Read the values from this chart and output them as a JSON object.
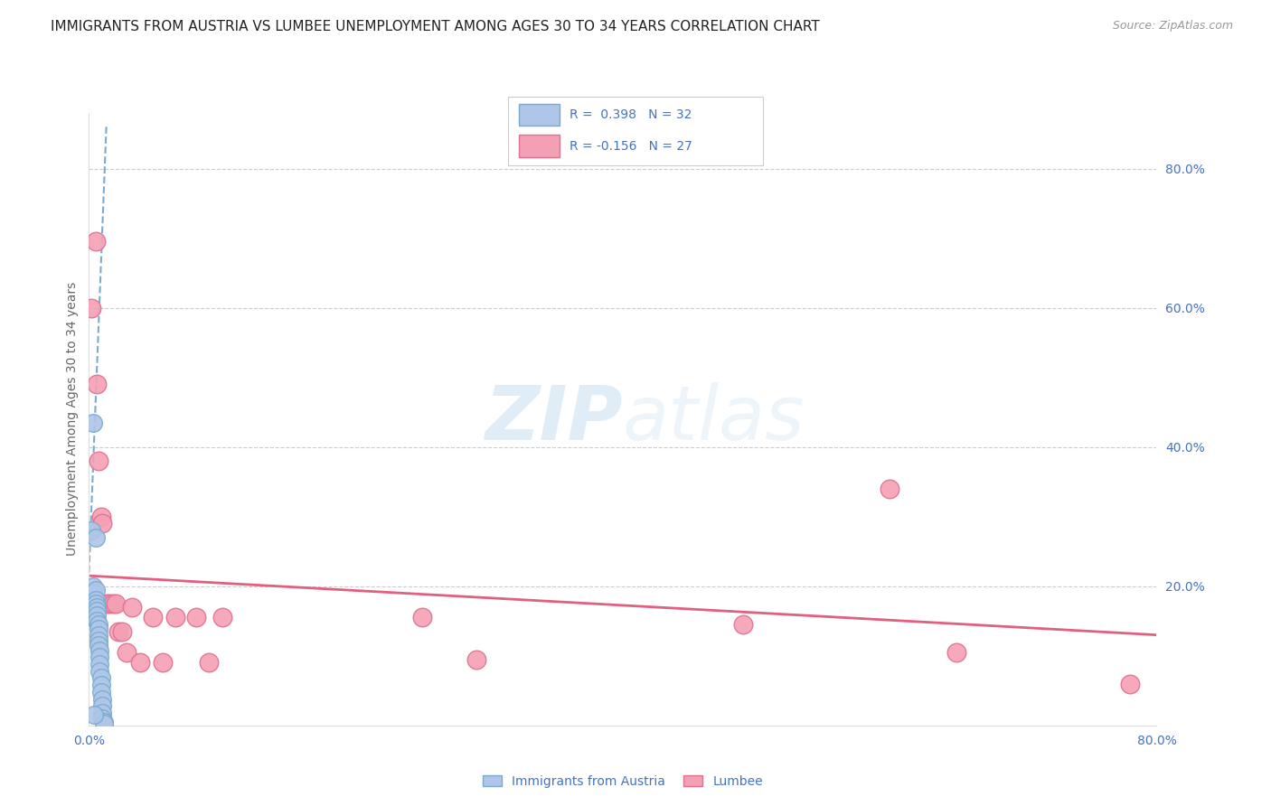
{
  "title": "IMMIGRANTS FROM AUSTRIA VS LUMBEE UNEMPLOYMENT AMONG AGES 30 TO 34 YEARS CORRELATION CHART",
  "source": "Source: ZipAtlas.com",
  "ylabel": "Unemployment Among Ages 30 to 34 years",
  "right_ytick_labels": [
    "80.0%",
    "60.0%",
    "40.0%",
    "20.0%"
  ],
  "right_ytick_vals": [
    0.8,
    0.6,
    0.4,
    0.2
  ],
  "xmin": 0.0,
  "xmax": 0.8,
  "ymin": 0.0,
  "ymax": 0.88,
  "austria_color": "#aec6e8",
  "austria_edge": "#7aaad0",
  "lumbee_color": "#f4a0b4",
  "lumbee_edge": "#e07090",
  "austria_scatter": [
    [
      0.003,
      0.435
    ],
    [
      0.002,
      0.28
    ],
    [
      0.003,
      0.2
    ],
    [
      0.003,
      0.19
    ],
    [
      0.004,
      0.175
    ],
    [
      0.005,
      0.27
    ],
    [
      0.005,
      0.195
    ],
    [
      0.005,
      0.18
    ],
    [
      0.005,
      0.175
    ],
    [
      0.006,
      0.17
    ],
    [
      0.006,
      0.165
    ],
    [
      0.006,
      0.158
    ],
    [
      0.006,
      0.15
    ],
    [
      0.007,
      0.145
    ],
    [
      0.007,
      0.138
    ],
    [
      0.007,
      0.13
    ],
    [
      0.007,
      0.122
    ],
    [
      0.007,
      0.115
    ],
    [
      0.008,
      0.108
    ],
    [
      0.008,
      0.098
    ],
    [
      0.008,
      0.088
    ],
    [
      0.008,
      0.078
    ],
    [
      0.009,
      0.068
    ],
    [
      0.009,
      0.058
    ],
    [
      0.009,
      0.048
    ],
    [
      0.01,
      0.038
    ],
    [
      0.01,
      0.028
    ],
    [
      0.01,
      0.018
    ],
    [
      0.01,
      0.01
    ],
    [
      0.011,
      0.005
    ],
    [
      0.011,
      0.002
    ],
    [
      0.004,
      0.015
    ]
  ],
  "lumbee_scatter": [
    [
      0.002,
      0.6
    ],
    [
      0.005,
      0.695
    ],
    [
      0.006,
      0.49
    ],
    [
      0.007,
      0.38
    ],
    [
      0.009,
      0.3
    ],
    [
      0.01,
      0.29
    ],
    [
      0.013,
      0.175
    ],
    [
      0.015,
      0.175
    ],
    [
      0.018,
      0.175
    ],
    [
      0.02,
      0.175
    ],
    [
      0.022,
      0.135
    ],
    [
      0.025,
      0.135
    ],
    [
      0.028,
      0.105
    ],
    [
      0.032,
      0.17
    ],
    [
      0.038,
      0.09
    ],
    [
      0.048,
      0.155
    ],
    [
      0.055,
      0.09
    ],
    [
      0.065,
      0.155
    ],
    [
      0.08,
      0.155
    ],
    [
      0.09,
      0.09
    ],
    [
      0.1,
      0.155
    ],
    [
      0.25,
      0.155
    ],
    [
      0.29,
      0.095
    ],
    [
      0.49,
      0.145
    ],
    [
      0.6,
      0.34
    ],
    [
      0.65,
      0.105
    ],
    [
      0.78,
      0.06
    ]
  ],
  "austria_trend_x": [
    0.0,
    0.013
  ],
  "austria_trend_y": [
    0.22,
    0.86
  ],
  "lumbee_trend_x": [
    0.0,
    0.8
  ],
  "lumbee_trend_y": [
    0.215,
    0.13
  ],
  "legend_r1": "R =  0.398   N = 32",
  "legend_r2": "R = -0.156   N = 27",
  "legend_label1": "Immigrants from Austria",
  "legend_label2": "Lumbee",
  "title_fontsize": 11,
  "source_fontsize": 9,
  "title_color": "#222222",
  "axis_label_color": "#4472c4",
  "grid_color": "#cccccc",
  "watermark_text": "ZIPatlas"
}
